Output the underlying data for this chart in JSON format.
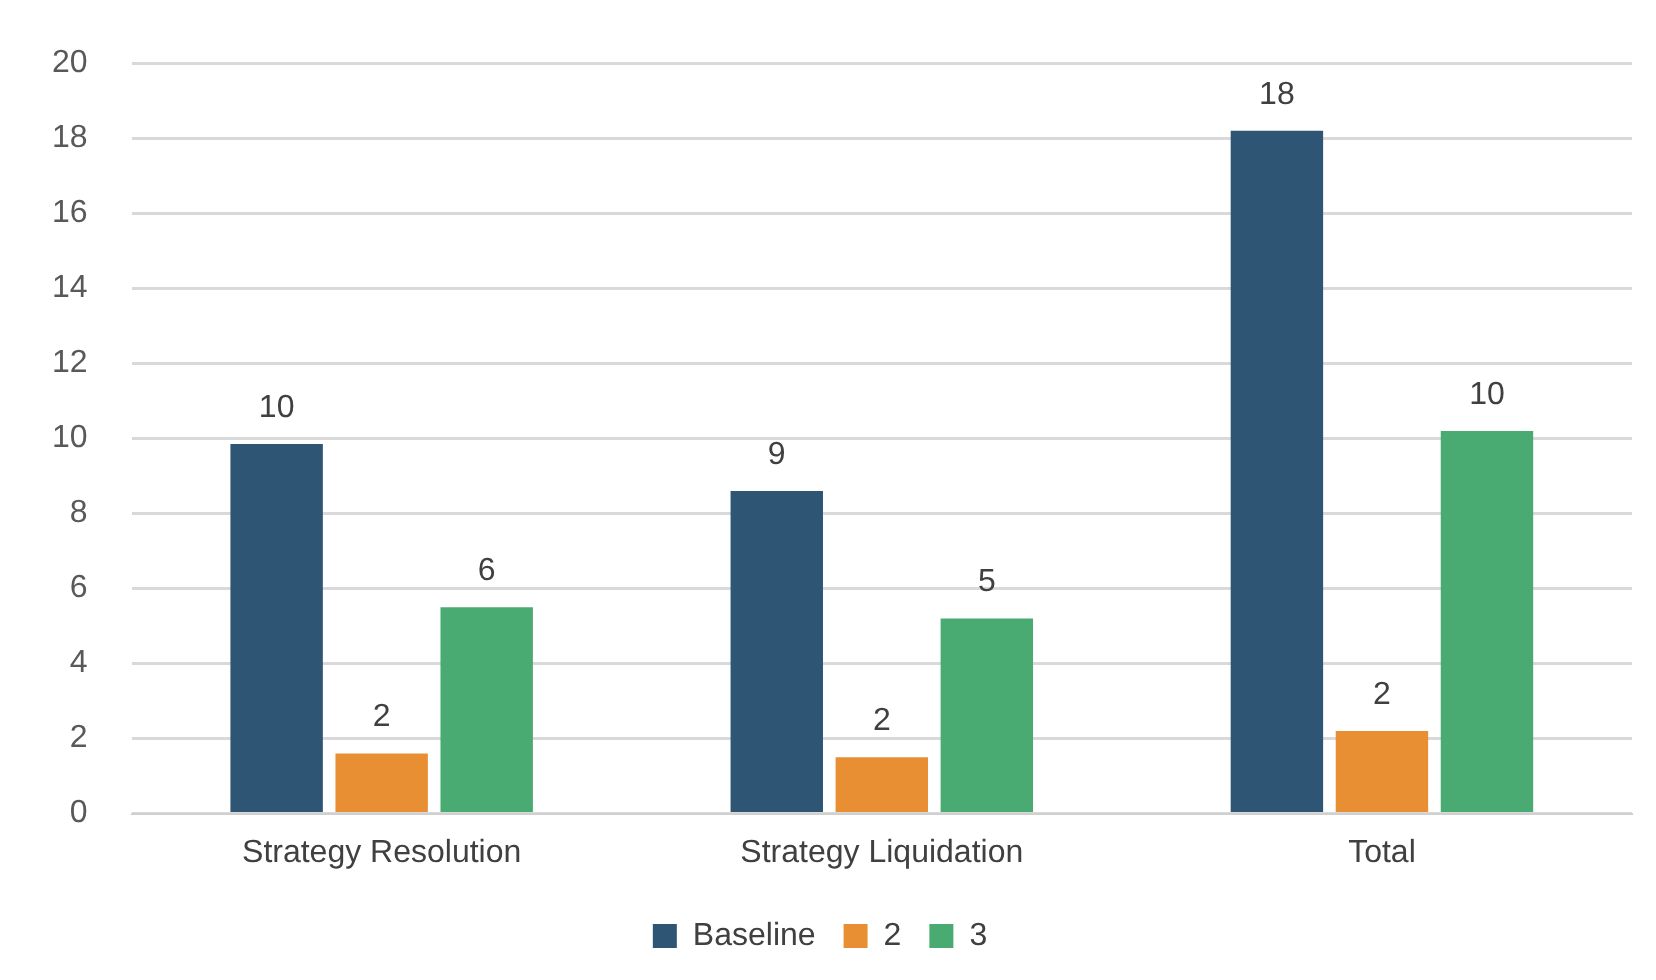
{
  "chart_data": {
    "type": "bar",
    "categories": [
      "Strategy Resolution",
      "Strategy Liquidation",
      "Total"
    ],
    "series": [
      {
        "name": "Baseline",
        "color": "#2e5573",
        "values": [
          9.85,
          8.6,
          18.2
        ],
        "value_labels": [
          "10",
          "9",
          "18"
        ]
      },
      {
        "name": "2",
        "color": "#e98f33",
        "values": [
          1.6,
          1.5,
          2.2
        ],
        "value_labels": [
          "2",
          "2",
          "2"
        ]
      },
      {
        "name": "3",
        "color": "#49ab72",
        "values": [
          5.5,
          5.2,
          10.2
        ],
        "value_labels": [
          "6",
          "5",
          "10"
        ]
      }
    ],
    "ylim": [
      0,
      20
    ],
    "yticks": [
      0,
      2,
      4,
      6,
      8,
      10,
      12,
      14,
      16,
      18,
      20
    ],
    "grid": "y",
    "legend": "bottom"
  }
}
